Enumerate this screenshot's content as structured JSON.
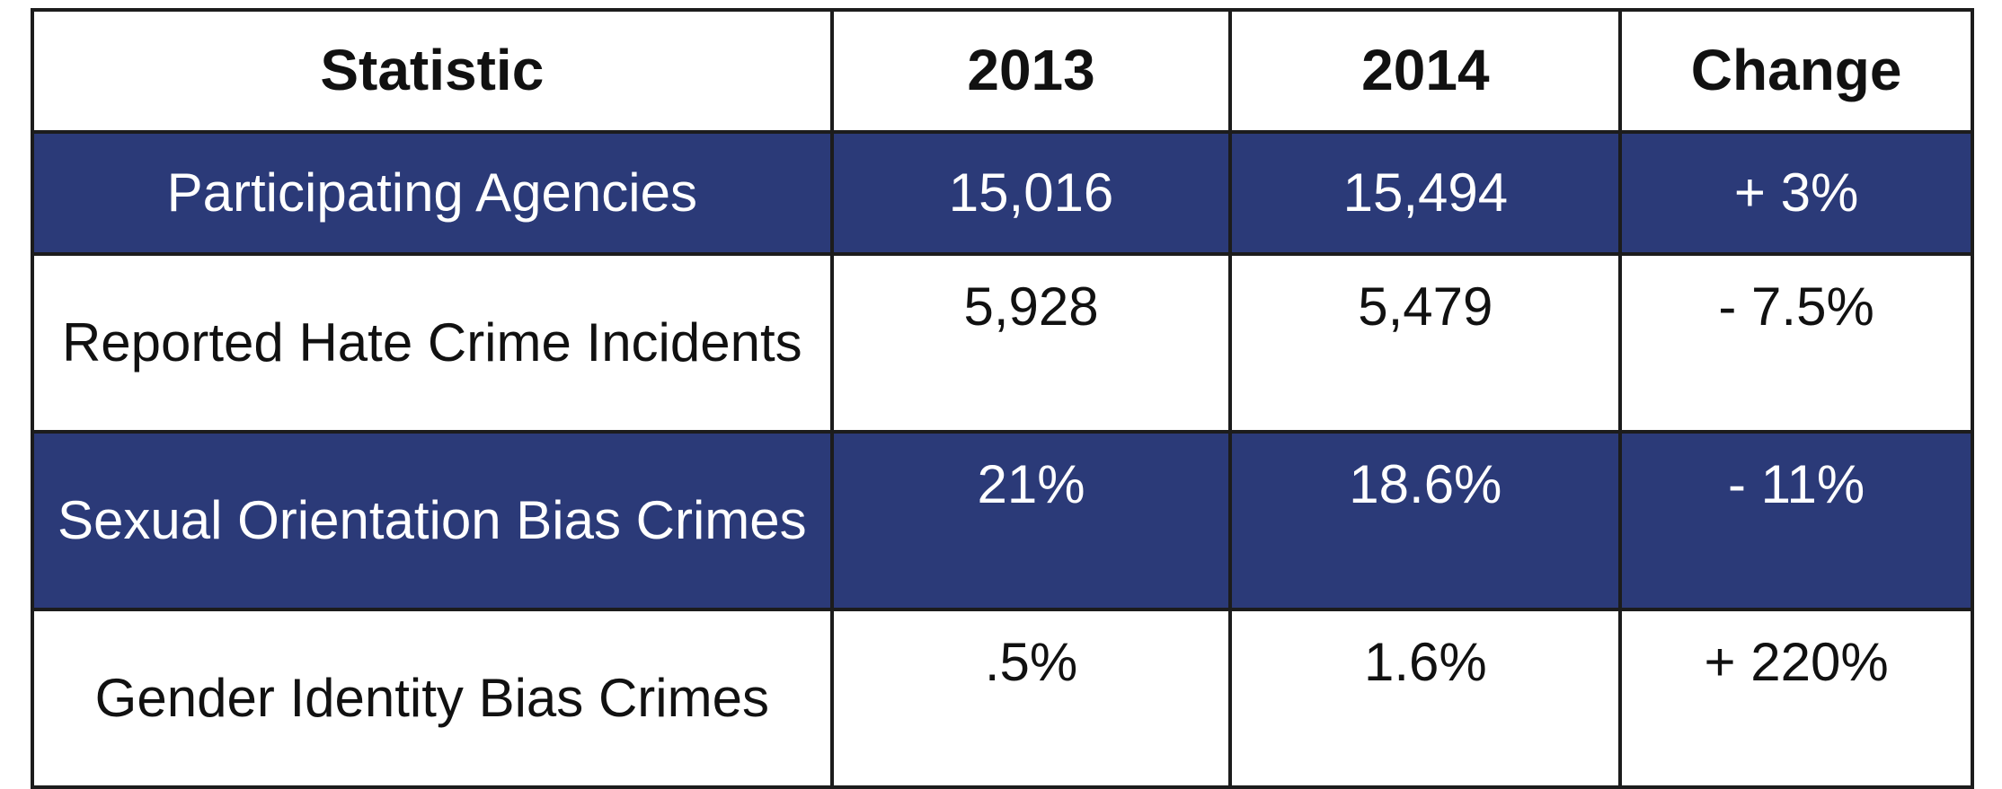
{
  "chart_data": {
    "type": "table",
    "columns": [
      "Statistic",
      "2013",
      "2014",
      "Change"
    ],
    "rows": [
      {
        "statistic": "Participating Agencies",
        "y2013": "15,016",
        "y2014": "15,494",
        "change": "+ 3%"
      },
      {
        "statistic": "Reported Hate Crime Incidents",
        "y2013": "5,928",
        "y2014": "5,479",
        "change": "- 7.5%"
      },
      {
        "statistic": "Sexual Orientation Bias Crimes",
        "y2013": "21%",
        "y2014": "18.6%",
        "change": "- 11%"
      },
      {
        "statistic": "Gender Identity Bias Crimes",
        "y2013": ".5%",
        "y2014": "1.6%",
        "change": "+ 220%"
      }
    ]
  },
  "colors": {
    "dark_row": "#2b3a78",
    "light_row": "#ffffff",
    "border": "#1c1c1c"
  }
}
